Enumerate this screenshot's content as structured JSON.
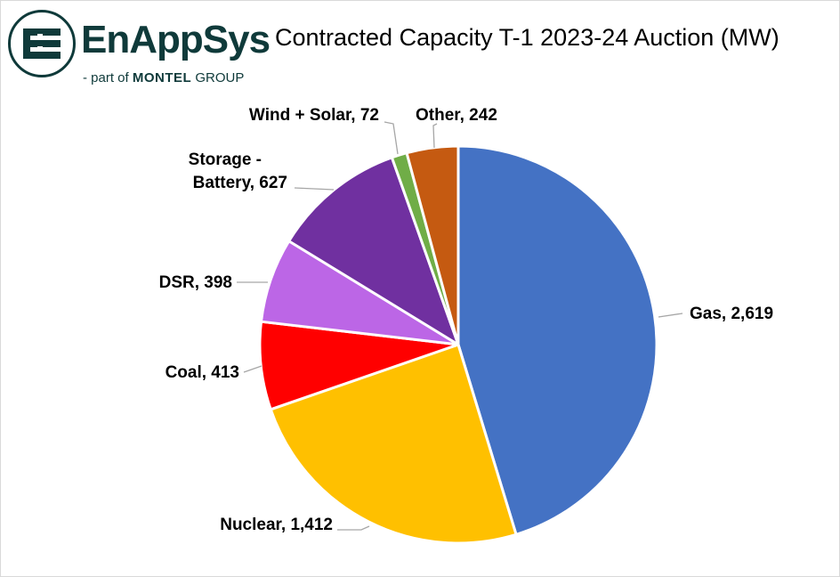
{
  "logo": {
    "brand": "EnAppSys",
    "tagline_prefix": "- part of ",
    "tagline_strong": "MONTEL",
    "tagline_suffix": " GROUP",
    "color": "#0f3a3a"
  },
  "chart_data": {
    "type": "pie",
    "title": "Contracted Capacity T-1 2023-24 Auction (MW)",
    "slices": [
      {
        "name": "Gas",
        "value": 2619,
        "label": "Gas, 2,619",
        "color": "#4472C4"
      },
      {
        "name": "Nuclear",
        "value": 1412,
        "label": "Nuclear, 1,412",
        "color": "#FFC000"
      },
      {
        "name": "Coal",
        "value": 413,
        "label": "Coal, 413",
        "color": "#FF0000"
      },
      {
        "name": "DSR",
        "value": 398,
        "label": "DSR, 398",
        "color": "#BC66E6"
      },
      {
        "name": "Storage - Battery",
        "value": 627,
        "label_lines": [
          "Storage -",
          "Battery, 627"
        ],
        "color": "#7030A0"
      },
      {
        "name": "Wind + Solar",
        "value": 72,
        "label": "Wind + Solar, 72",
        "color": "#70AD47"
      },
      {
        "name": "Other",
        "value": 242,
        "label": "Other, 242",
        "color": "#C55A11"
      }
    ],
    "start_angle": "12 o'clock",
    "direction": "clockwise",
    "legend": "none"
  }
}
